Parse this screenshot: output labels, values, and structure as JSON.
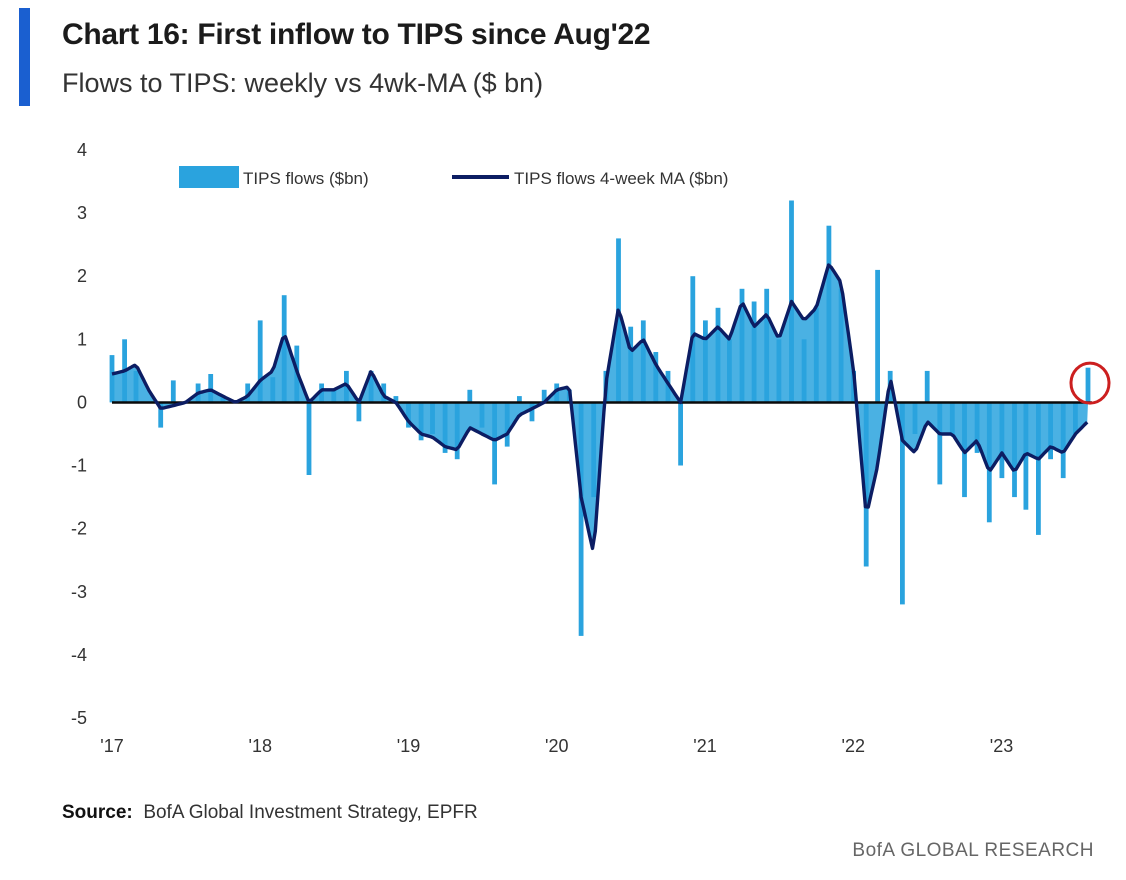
{
  "header": {
    "title": "Chart 16: First inflow to TIPS since Aug'22",
    "subtitle": "Flows to TIPS: weekly vs 4wk-MA ($ bn)"
  },
  "footer": {
    "source_label": "Source:",
    "source_text": "BofA Global Investment Strategy, EPFR",
    "brand": "BofA GLOBAL RESEARCH"
  },
  "colors": {
    "bars": "#2aa3de",
    "ma_line": "#0c1d63",
    "highlight_circle": "#cc1f1f",
    "accent": "#1a5fd0"
  },
  "chart_data": {
    "type": "bar",
    "title": "Chart 16: First inflow to TIPS since Aug'22",
    "subtitle": "Flows to TIPS: weekly vs 4wk-MA ($ bn)",
    "xlabel": "",
    "ylabel": "",
    "ylim": [
      -5,
      4
    ],
    "y_ticks": [
      "4",
      "3",
      "2",
      "1",
      "0",
      "-1",
      "-2",
      "-3",
      "-4",
      "-5"
    ],
    "x_tick_labels": [
      "'17",
      "'18",
      "'19",
      "'20",
      "'21",
      "'22",
      "'23"
    ],
    "x_range": [
      "2017-01",
      "2023-08"
    ],
    "grid": false,
    "legend": "top-center",
    "annotation": "circle around the latest weekly inflow",
    "series": [
      {
        "name": "TIPS flows ($bn)",
        "type": "bar",
        "anchors": [
          [
            "2017-01-01",
            0.75
          ],
          [
            "2017-02-01",
            1.0
          ],
          [
            "2017-03-01",
            0.5
          ],
          [
            "2017-04-01",
            0.0
          ],
          [
            "2017-05-01",
            -0.4
          ],
          [
            "2017-06-01",
            0.35
          ],
          [
            "2017-07-01",
            0.0
          ],
          [
            "2017-08-01",
            0.3
          ],
          [
            "2017-09-01",
            0.45
          ],
          [
            "2017-10-01",
            0.1
          ],
          [
            "2017-11-01",
            0.0
          ],
          [
            "2017-12-01",
            0.3
          ],
          [
            "2018-01-01",
            1.3
          ],
          [
            "2018-02-01",
            0.4
          ],
          [
            "2018-03-01",
            1.7
          ],
          [
            "2018-04-01",
            0.9
          ],
          [
            "2018-05-01",
            -1.15
          ],
          [
            "2018-06-01",
            0.3
          ],
          [
            "2018-07-01",
            0.2
          ],
          [
            "2018-08-01",
            0.5
          ],
          [
            "2018-09-01",
            -0.3
          ],
          [
            "2018-10-01",
            0.5
          ],
          [
            "2018-11-01",
            0.3
          ],
          [
            "2018-12-01",
            0.1
          ],
          [
            "2019-01-01",
            -0.4
          ],
          [
            "2019-02-01",
            -0.6
          ],
          [
            "2019-03-01",
            -0.5
          ],
          [
            "2019-04-01",
            -0.8
          ],
          [
            "2019-05-01",
            -0.9
          ],
          [
            "2019-06-01",
            0.2
          ],
          [
            "2019-07-01",
            -0.4
          ],
          [
            "2019-08-01",
            -1.3
          ],
          [
            "2019-09-01",
            -0.7
          ],
          [
            "2019-10-01",
            0.1
          ],
          [
            "2019-11-01",
            -0.3
          ],
          [
            "2019-12-01",
            0.2
          ],
          [
            "2020-01-01",
            0.3
          ],
          [
            "2020-02-01",
            0.2
          ],
          [
            "2020-03-01",
            -3.7
          ],
          [
            "2020-04-01",
            -1.5
          ],
          [
            "2020-05-01",
            0.5
          ],
          [
            "2020-06-01",
            2.6
          ],
          [
            "2020-07-01",
            1.2
          ],
          [
            "2020-08-01",
            1.3
          ],
          [
            "2020-09-01",
            0.8
          ],
          [
            "2020-10-01",
            0.5
          ],
          [
            "2020-11-01",
            -1.0
          ],
          [
            "2020-12-01",
            2.0
          ],
          [
            "2021-01-01",
            1.3
          ],
          [
            "2021-02-01",
            1.5
          ],
          [
            "2021-03-01",
            1.0
          ],
          [
            "2021-04-01",
            1.8
          ],
          [
            "2021-05-01",
            1.6
          ],
          [
            "2021-06-01",
            1.8
          ],
          [
            "2021-07-01",
            1.0
          ],
          [
            "2021-08-01",
            3.2
          ],
          [
            "2021-09-01",
            1.0
          ],
          [
            "2021-10-01",
            1.5
          ],
          [
            "2021-11-01",
            2.8
          ],
          [
            "2021-12-01",
            1.8
          ],
          [
            "2022-01-01",
            0.5
          ],
          [
            "2022-02-01",
            -2.6
          ],
          [
            "2022-03-01",
            2.1
          ],
          [
            "2022-04-01",
            0.5
          ],
          [
            "2022-05-01",
            -3.2
          ],
          [
            "2022-06-01",
            -0.5
          ],
          [
            "2022-07-01",
            0.5
          ],
          [
            "2022-08-01",
            -1.3
          ],
          [
            "2022-09-01",
            -0.5
          ],
          [
            "2022-10-01",
            -1.5
          ],
          [
            "2022-11-01",
            -0.8
          ],
          [
            "2022-12-01",
            -1.9
          ],
          [
            "2023-01-01",
            -1.2
          ],
          [
            "2023-02-01",
            -1.5
          ],
          [
            "2023-03-01",
            -1.7
          ],
          [
            "2023-04-01",
            -2.1
          ],
          [
            "2023-05-01",
            -0.9
          ],
          [
            "2023-06-01",
            -1.2
          ],
          [
            "2023-07-01",
            -0.5
          ],
          [
            "2023-08-01",
            0.55
          ]
        ]
      },
      {
        "name": "TIPS flows 4-week MA ($bn)",
        "type": "line",
        "anchors": [
          [
            "2017-01-01",
            0.45
          ],
          [
            "2017-02-01",
            0.5
          ],
          [
            "2017-03-01",
            0.6
          ],
          [
            "2017-04-01",
            0.2
          ],
          [
            "2017-05-01",
            -0.1
          ],
          [
            "2017-06-01",
            -0.05
          ],
          [
            "2017-07-01",
            0.0
          ],
          [
            "2017-08-01",
            0.15
          ],
          [
            "2017-09-01",
            0.2
          ],
          [
            "2017-10-01",
            0.1
          ],
          [
            "2017-11-01",
            0.0
          ],
          [
            "2017-12-01",
            0.1
          ],
          [
            "2018-01-01",
            0.35
          ],
          [
            "2018-02-01",
            0.5
          ],
          [
            "2018-03-01",
            1.1
          ],
          [
            "2018-04-01",
            0.5
          ],
          [
            "2018-05-01",
            0.0
          ],
          [
            "2018-06-01",
            0.2
          ],
          [
            "2018-07-01",
            0.2
          ],
          [
            "2018-08-01",
            0.3
          ],
          [
            "2018-09-01",
            0.0
          ],
          [
            "2018-10-01",
            0.5
          ],
          [
            "2018-11-01",
            0.1
          ],
          [
            "2018-12-01",
            0.0
          ],
          [
            "2019-01-01",
            -0.3
          ],
          [
            "2019-02-01",
            -0.5
          ],
          [
            "2019-03-01",
            -0.55
          ],
          [
            "2019-04-01",
            -0.7
          ],
          [
            "2019-05-01",
            -0.75
          ],
          [
            "2019-06-01",
            -0.4
          ],
          [
            "2019-07-01",
            -0.5
          ],
          [
            "2019-08-01",
            -0.6
          ],
          [
            "2019-09-01",
            -0.5
          ],
          [
            "2019-10-01",
            -0.2
          ],
          [
            "2019-11-01",
            -0.1
          ],
          [
            "2019-12-01",
            0.0
          ],
          [
            "2020-01-01",
            0.2
          ],
          [
            "2020-02-01",
            0.25
          ],
          [
            "2020-03-01",
            -1.5
          ],
          [
            "2020-04-01",
            -2.4
          ],
          [
            "2020-05-01",
            0.3
          ],
          [
            "2020-06-01",
            1.5
          ],
          [
            "2020-07-01",
            0.8
          ],
          [
            "2020-08-01",
            1.0
          ],
          [
            "2020-09-01",
            0.6
          ],
          [
            "2020-10-01",
            0.3
          ],
          [
            "2020-11-01",
            0.0
          ],
          [
            "2020-12-01",
            1.1
          ],
          [
            "2021-01-01",
            1.0
          ],
          [
            "2021-02-01",
            1.2
          ],
          [
            "2021-03-01",
            1.0
          ],
          [
            "2021-04-01",
            1.6
          ],
          [
            "2021-05-01",
            1.2
          ],
          [
            "2021-06-01",
            1.4
          ],
          [
            "2021-07-01",
            1.0
          ],
          [
            "2021-08-01",
            1.6
          ],
          [
            "2021-09-01",
            1.3
          ],
          [
            "2021-10-01",
            1.5
          ],
          [
            "2021-11-01",
            2.2
          ],
          [
            "2021-12-01",
            1.9
          ],
          [
            "2022-01-01",
            0.5
          ],
          [
            "2022-02-01",
            -1.8
          ],
          [
            "2022-03-01",
            -1.0
          ],
          [
            "2022-04-01",
            0.4
          ],
          [
            "2022-05-01",
            -0.6
          ],
          [
            "2022-06-01",
            -0.8
          ],
          [
            "2022-07-01",
            -0.3
          ],
          [
            "2022-08-01",
            -0.5
          ],
          [
            "2022-09-01",
            -0.5
          ],
          [
            "2022-10-01",
            -0.8
          ],
          [
            "2022-11-01",
            -0.6
          ],
          [
            "2022-12-01",
            -1.1
          ],
          [
            "2023-01-01",
            -0.8
          ],
          [
            "2023-02-01",
            -1.1
          ],
          [
            "2023-03-01",
            -0.8
          ],
          [
            "2023-04-01",
            -0.9
          ],
          [
            "2023-05-01",
            -0.7
          ],
          [
            "2023-06-01",
            -0.8
          ],
          [
            "2023-07-01",
            -0.5
          ],
          [
            "2023-08-01",
            -0.3
          ]
        ]
      }
    ]
  }
}
